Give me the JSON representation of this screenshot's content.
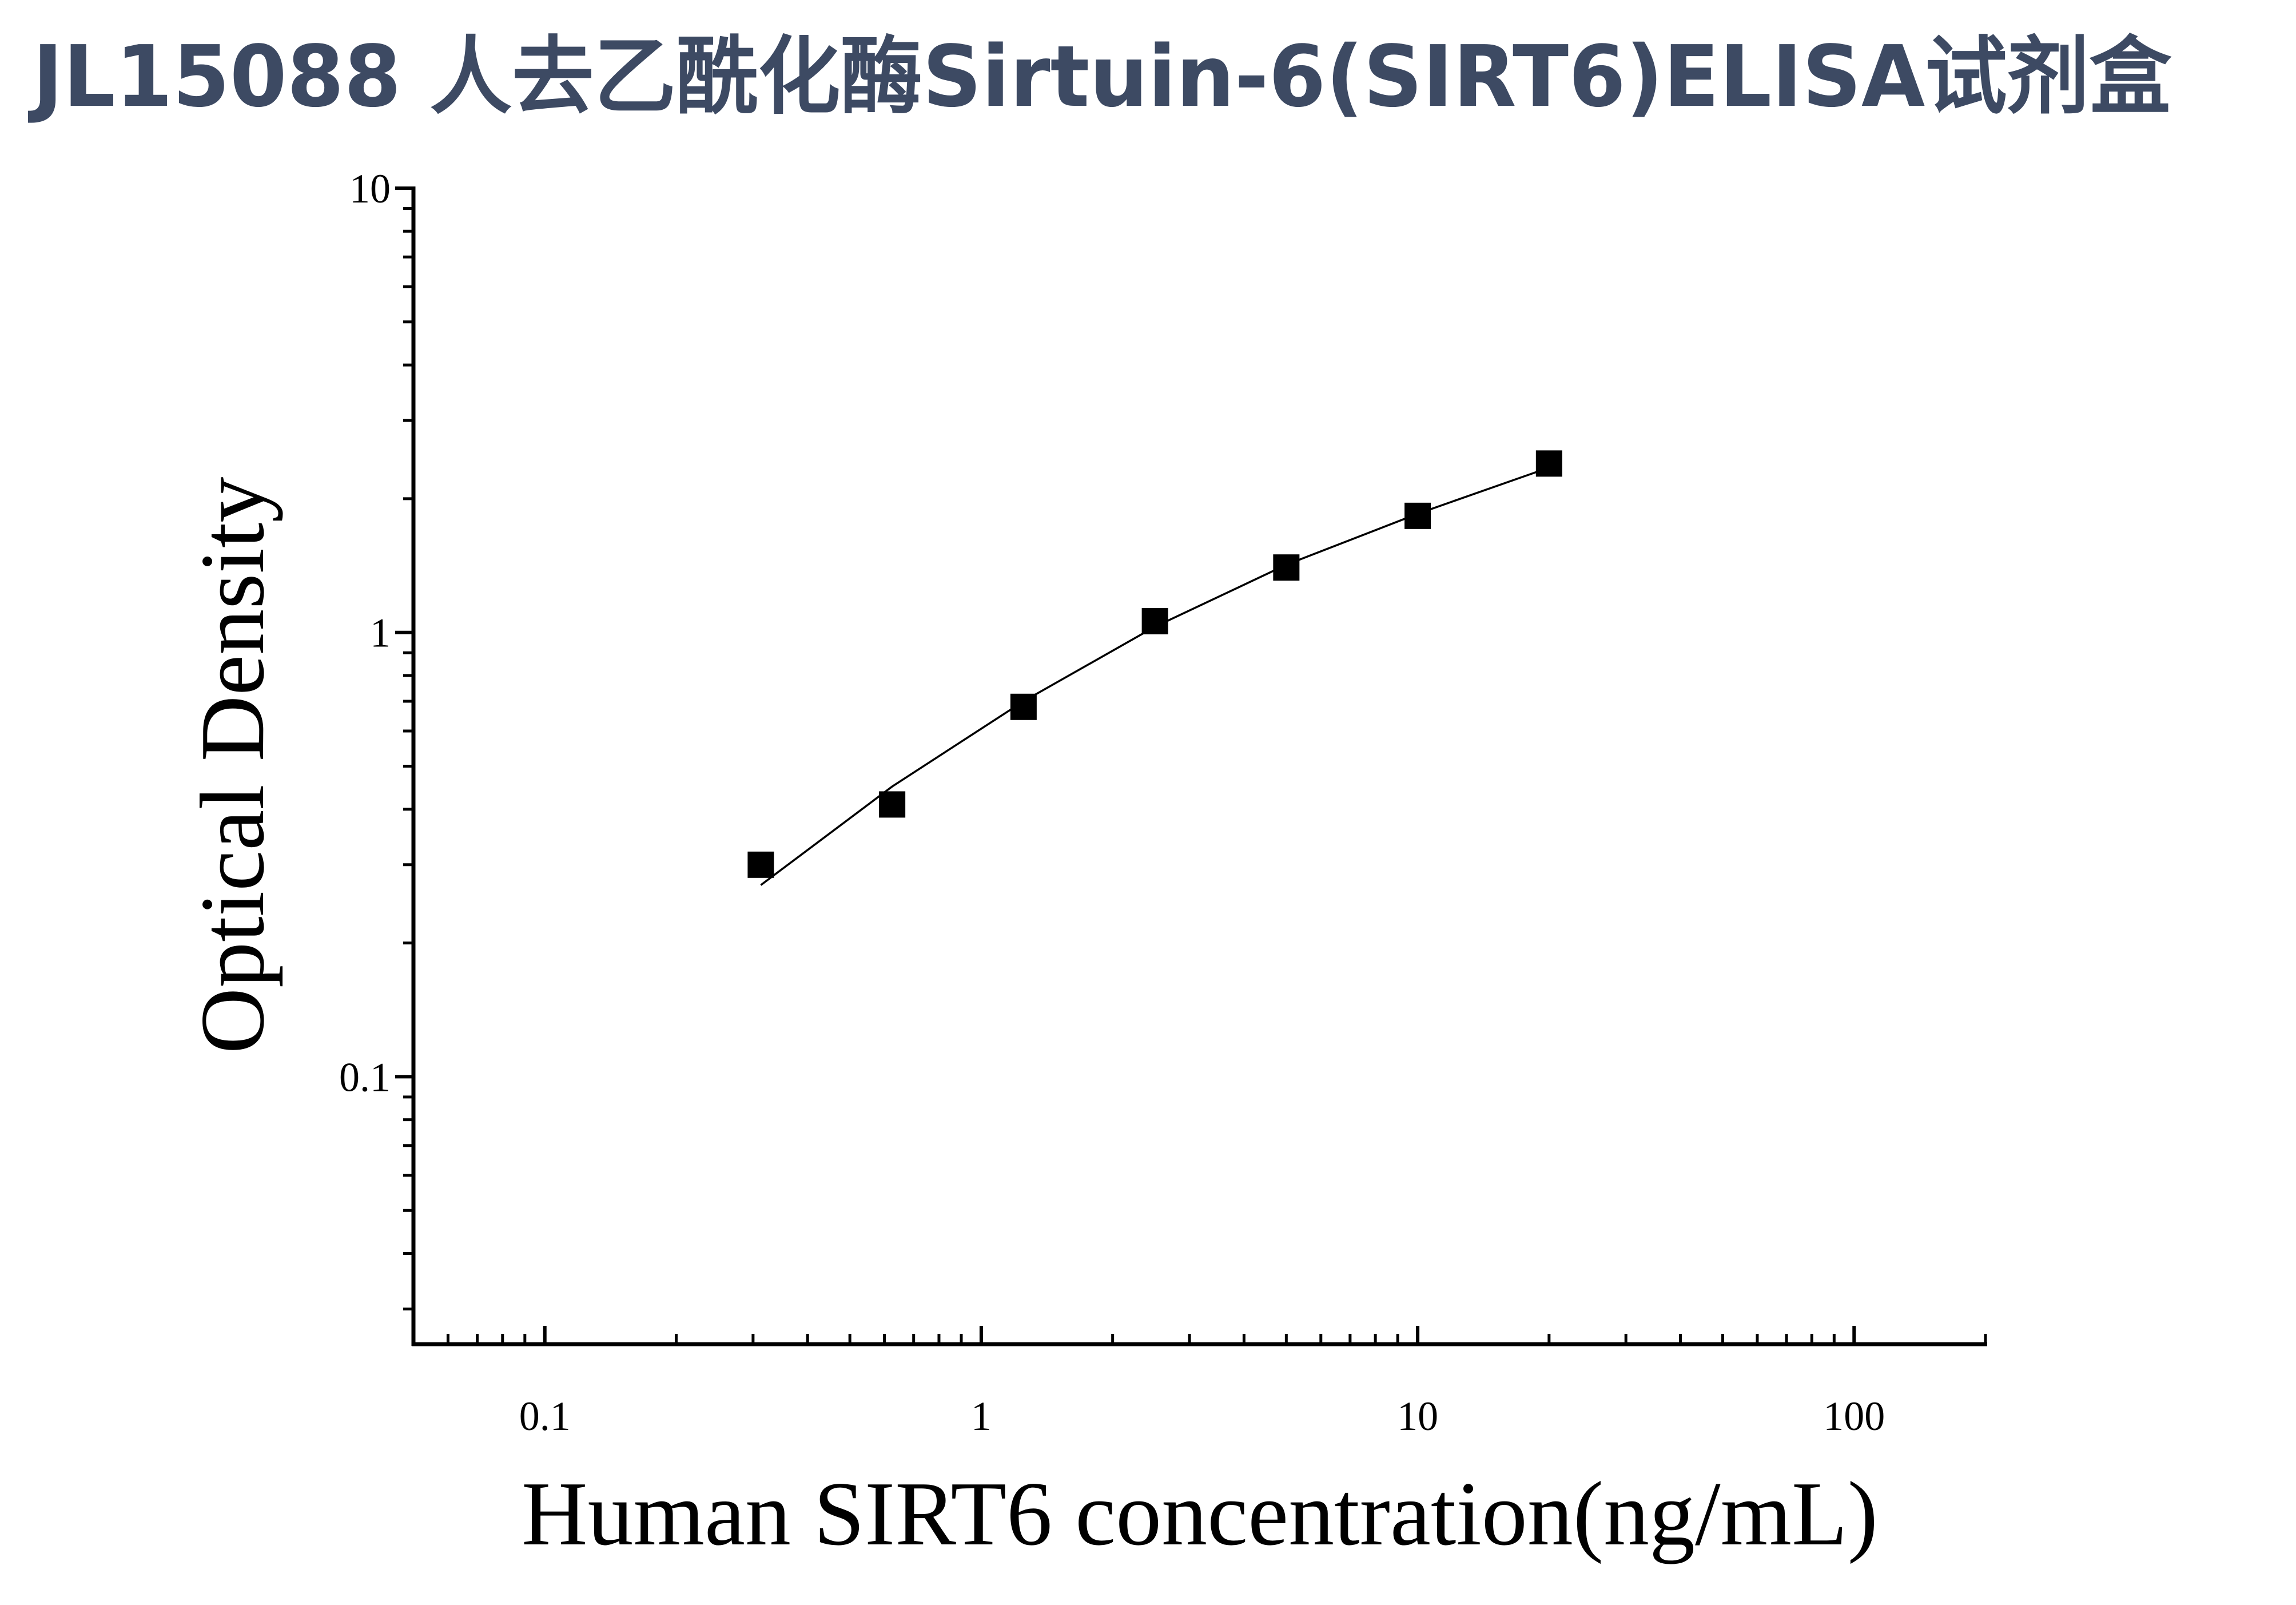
{
  "chart_data": {
    "type": "scatter",
    "title": "JL15088 人去乙酰化酶Sirtuin-6(SIRT6)ELISA试剂盒",
    "x_label": "Human SIRT6 concentration(ng/mL)",
    "y_label": "Optical Density",
    "x_log": true,
    "y_log": true,
    "xlim": [
      0.05,
      200
    ],
    "ylim": [
      0.025,
      10
    ],
    "xticks": [
      0.1,
      1,
      10,
      100
    ],
    "yticks": [
      0.1,
      1,
      10
    ],
    "xminorticks": [
      0.05,
      0.06,
      0.07,
      0.08,
      0.09,
      0.2,
      0.3,
      0.4,
      0.5,
      0.6,
      0.7,
      0.8,
      0.9,
      2,
      3,
      4,
      5,
      6,
      7,
      8,
      9,
      20,
      30,
      40,
      50,
      60,
      70,
      80,
      90,
      200
    ],
    "yminorticks": [
      0.03,
      0.04,
      0.05,
      0.06,
      0.07,
      0.08,
      0.09,
      0.2,
      0.3,
      0.4,
      0.5,
      0.6,
      0.7,
      0.8,
      0.9,
      2,
      3,
      4,
      5,
      6,
      7,
      8,
      9
    ],
    "series": [
      {
        "marker": "square",
        "color": "#000000",
        "x": [
          0.3125,
          0.625,
          1.25,
          2.5,
          5,
          10,
          20
        ],
        "values": [
          0.3,
          0.41,
          0.68,
          1.06,
          1.4,
          1.83,
          2.4
        ]
      },
      {
        "marker": "line",
        "color": "#000000",
        "x": [
          0.3125,
          0.625,
          1.25,
          2.5,
          5,
          10,
          20
        ],
        "values": [
          0.27,
          0.45,
          0.7,
          1.03,
          1.42,
          1.85,
          2.35
        ]
      }
    ]
  }
}
